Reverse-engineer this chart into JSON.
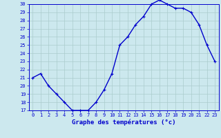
{
  "hours": [
    0,
    1,
    2,
    3,
    4,
    5,
    6,
    7,
    8,
    9,
    10,
    11,
    12,
    13,
    14,
    15,
    16,
    17,
    18,
    19,
    20,
    21,
    22,
    23
  ],
  "temps": [
    21,
    21.5,
    20,
    19,
    18,
    17,
    17,
    17,
    18,
    19.5,
    21.5,
    25,
    26,
    27.5,
    28.5,
    30,
    30.5,
    30,
    29.5,
    29.5,
    29,
    27.5,
    25,
    23
  ],
  "line_color": "#0000cc",
  "marker": "+",
  "marker_color": "#0000cc",
  "bg_color": "#cce8ee",
  "grid_color": "#aacccc",
  "xlabel": "Graphe des températures (°c)",
  "ylim": [
    17,
    30
  ],
  "yticks": [
    17,
    18,
    19,
    20,
    21,
    22,
    23,
    24,
    25,
    26,
    27,
    28,
    29,
    30
  ],
  "xticks": [
    0,
    1,
    2,
    3,
    4,
    5,
    6,
    7,
    8,
    9,
    10,
    11,
    12,
    13,
    14,
    15,
    16,
    17,
    18,
    19,
    20,
    21,
    22,
    23
  ],
  "tick_fontsize": 5.0,
  "xlabel_fontsize": 6.5,
  "xlabel_color": "#0000cc",
  "xlabel_fontweight": "bold",
  "tick_color": "#0000cc",
  "spine_color": "#0000cc",
  "line_width": 1.0,
  "marker_size": 3.5
}
